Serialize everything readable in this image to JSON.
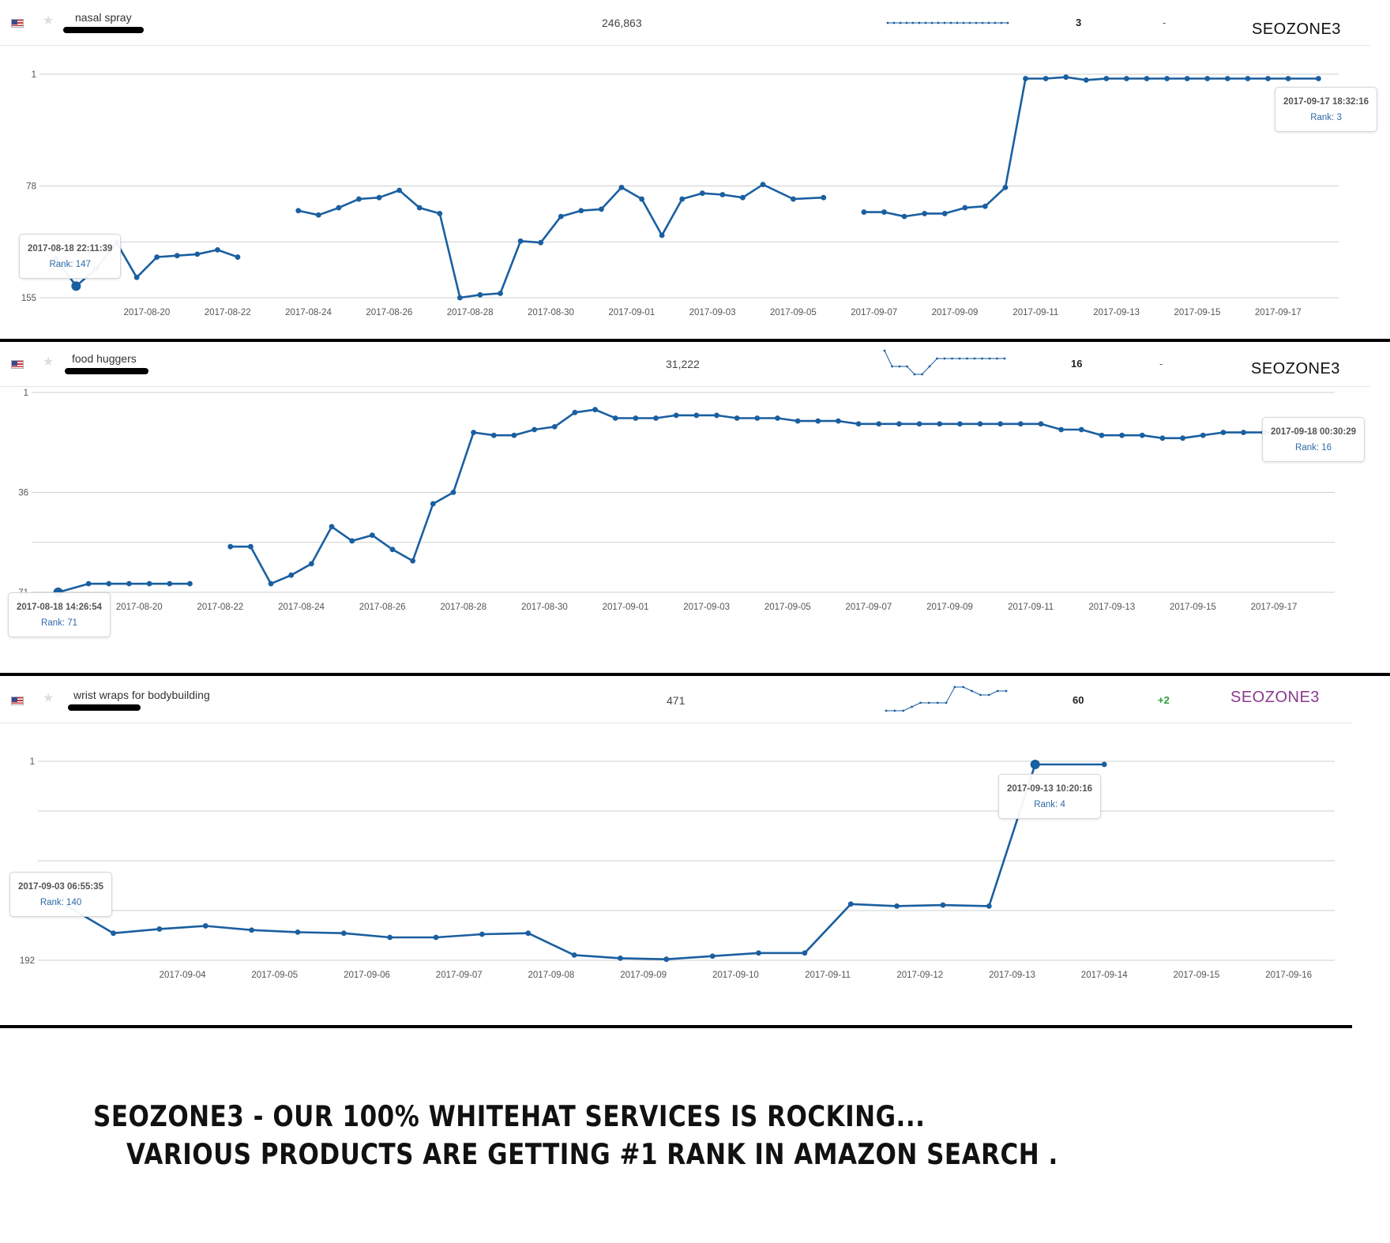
{
  "panels": [
    {
      "keyword": "nasal spray",
      "search_volume": "246,863",
      "current_rank": "3",
      "change": "-",
      "brand": "SEOZONE3",
      "flag_icon": "us-flag-icon",
      "star_icon": "star-icon",
      "tooltip_start": {
        "timestamp": "2017-08-18 22:11:39",
        "rank": "Rank: 147"
      },
      "tooltip_end": {
        "timestamp": "2017-09-17 18:32:16",
        "rank": "Rank: 3"
      },
      "sparkline": [
        3,
        3,
        3,
        3,
        3,
        3,
        3,
        3,
        3,
        3,
        3,
        3,
        3,
        3,
        3,
        3,
        3,
        3,
        3,
        3
      ],
      "chart_data": {
        "type": "line",
        "y_axis": "rank",
        "ylim": [
          1,
          155
        ],
        "ytick_labels": [
          "1",
          "78",
          "155"
        ],
        "y_tick_values": [
          1,
          78,
          155
        ],
        "extra_gridlines": [
          116.5
        ],
        "x_start": "2017-08-18",
        "x_end": "2017-09-19",
        "xtick_labels": [
          "2017-08-20",
          "2017-08-22",
          "2017-08-24",
          "2017-08-26",
          "2017-08-28",
          "2017-08-30",
          "2017-09-01",
          "2017-09-03",
          "2017-09-05",
          "2017-09-07",
          "2017-09-09",
          "2017-09-11",
          "2017-09-13",
          "2017-09-15",
          "2017-09-17"
        ],
        "x": [
          "2017-08-18",
          "2017-08-18",
          "2017-08-19",
          "2017-08-19",
          "2017-08-20",
          "2017-08-20",
          "2017-08-21",
          "2017-08-21",
          "2017-08-22",
          "2017-08-22",
          "2017-08-23",
          "2017-08-24",
          "2017-08-24",
          "2017-08-25",
          "2017-08-25",
          "2017-08-26",
          "2017-08-26",
          "2017-08-27",
          "2017-08-27",
          "2017-08-28",
          "2017-08-28",
          "2017-08-29",
          "2017-08-29",
          "2017-08-30",
          "2017-08-30",
          "2017-08-31",
          "2017-08-31",
          "2017-09-01",
          "2017-09-01",
          "2017-09-02",
          "2017-09-02",
          "2017-09-03",
          "2017-09-03",
          "2017-09-04",
          "2017-09-04",
          "2017-09-05",
          "2017-09-06",
          "2017-09-06",
          "2017-09-07",
          "2017-09-07",
          "2017-09-08",
          "2017-09-08",
          "2017-09-09",
          "2017-09-09",
          "2017-09-10",
          "2017-09-10",
          "2017-09-11",
          "2017-09-11",
          "2017-09-12",
          "2017-09-12",
          "2017-09-13",
          "2017-09-13",
          "2017-09-14",
          "2017-09-14",
          "2017-09-15",
          "2017-09-15",
          "2017-09-16",
          "2017-09-16",
          "2017-09-17",
          "2017-09-17",
          "2017-09-18"
        ],
        "series": [
          {
            "values": [
              128,
              147,
              135,
              117,
              141,
              127,
              126,
              125,
              122,
              127,
              null,
              95,
              98,
              93,
              87,
              86,
              81,
              93,
              97,
              155,
              153,
              152,
              116,
              117,
              99,
              95,
              94,
              79,
              87,
              112,
              87,
              83,
              84,
              86,
              77,
              87,
              86,
              null,
              96,
              96,
              99,
              97,
              97,
              93,
              92,
              79,
              4,
              4,
              3,
              5,
              4,
              4,
              4,
              4,
              4,
              4,
              4,
              4,
              4,
              4,
              4
            ]
          }
        ]
      }
    },
    {
      "keyword": "food huggers",
      "search_volume": "31,222",
      "current_rank": "16",
      "change": "-",
      "brand": "SEOZONE3",
      "flag_icon": "us-flag-icon",
      "star_icon": "star-icon",
      "tooltip_start": {
        "timestamp": "2017-08-18 14:26:54",
        "rank": "Rank: 71"
      },
      "tooltip_end": {
        "timestamp": "2017-09-18 00:30:29",
        "rank": "Rank: 16"
      },
      "sparkline": [
        1,
        5,
        5,
        5,
        7,
        7,
        5,
        3,
        3,
        3,
        3,
        3,
        3,
        3,
        3,
        3,
        3
      ],
      "chart_data": {
        "type": "line",
        "y_axis": "rank",
        "ylim": [
          1,
          71
        ],
        "ytick_labels": [
          "1",
          "36",
          "71"
        ],
        "y_tick_values": [
          1,
          36,
          71
        ],
        "extra_gridlines": [
          53.5
        ],
        "x_start": "2017-08-18",
        "x_end": "2017-09-19",
        "xtick_labels": [
          "2017-08-20",
          "2017-08-22",
          "2017-08-24",
          "2017-08-26",
          "2017-08-28",
          "2017-08-30",
          "2017-09-01",
          "2017-09-03",
          "2017-09-05",
          "2017-09-07",
          "2017-09-09",
          "2017-09-11",
          "2017-09-13",
          "2017-09-15",
          "2017-09-17"
        ],
        "x": [
          "2017-08-18",
          "2017-08-19",
          "2017-08-19",
          "2017-08-20",
          "2017-08-20",
          "2017-08-21",
          "2017-08-21",
          "2017-08-22",
          "2017-08-22",
          "2017-08-23",
          "2017-08-23",
          "2017-08-24",
          "2017-08-24",
          "2017-08-25",
          "2017-08-25",
          "2017-08-26",
          "2017-08-26",
          "2017-08-27",
          "2017-08-27",
          "2017-08-28",
          "2017-08-28",
          "2017-08-29",
          "2017-08-29",
          "2017-08-30",
          "2017-08-30",
          "2017-08-31",
          "2017-08-31",
          "2017-09-01",
          "2017-09-01",
          "2017-09-02",
          "2017-09-02",
          "2017-09-03",
          "2017-09-03",
          "2017-09-04",
          "2017-09-04",
          "2017-09-05",
          "2017-09-05",
          "2017-09-06",
          "2017-09-06",
          "2017-09-07",
          "2017-09-07",
          "2017-09-08",
          "2017-09-08",
          "2017-09-09",
          "2017-09-09",
          "2017-09-10",
          "2017-09-10",
          "2017-09-11",
          "2017-09-11",
          "2017-09-12",
          "2017-09-12",
          "2017-09-13",
          "2017-09-13",
          "2017-09-14",
          "2017-09-14",
          "2017-09-15",
          "2017-09-15",
          "2017-09-16",
          "2017-09-16",
          "2017-09-17",
          "2017-09-17",
          "2017-09-18"
        ],
        "series": [
          {
            "values": [
              71,
              68,
              68,
              68,
              68,
              68,
              68,
              null,
              55,
              55,
              68,
              65,
              61,
              48,
              53,
              51,
              56,
              60,
              40,
              36,
              15,
              16,
              16,
              14,
              13,
              8,
              7,
              10,
              10,
              10,
              9,
              9,
              9,
              10,
              10,
              10,
              11,
              11,
              11,
              12,
              12,
              12,
              12,
              12,
              12,
              12,
              12,
              12,
              12,
              14,
              14,
              16,
              16,
              16,
              17,
              17,
              16,
              15,
              15,
              15,
              15,
              15
            ]
          }
        ]
      }
    },
    {
      "keyword": "wrist wraps for bodybuilding",
      "search_volume": "471",
      "current_rank": "60",
      "change": "+2",
      "brand": "SEOZONE3",
      "flag_icon": "us-flag-icon",
      "star_icon": "star-icon",
      "tooltip_start": {
        "timestamp": "2017-09-03 06:55:35",
        "rank": "Rank: 140"
      },
      "tooltip_end": {
        "timestamp": "2017-09-13 10:20:16",
        "rank": "Rank: 4"
      },
      "sparkline": [
        8,
        8,
        8,
        7,
        6,
        6,
        6,
        6,
        2,
        2,
        3,
        4,
        4,
        3,
        3
      ],
      "chart_data": {
        "type": "line",
        "y_axis": "rank",
        "ylim": [
          1,
          192
        ],
        "ytick_labels": [
          "1",
          "192"
        ],
        "y_tick_values": [
          1,
          192
        ],
        "extra_gridlines": [
          48.75,
          96.5,
          144.25
        ],
        "x_start": "2017-09-03",
        "x_end": "2017-09-17",
        "xtick_labels": [
          "2017-09-04",
          "2017-09-05",
          "2017-09-06",
          "2017-09-07",
          "2017-09-08",
          "2017-09-09",
          "2017-09-10",
          "2017-09-11",
          "2017-09-12",
          "2017-09-13",
          "2017-09-14",
          "2017-09-15",
          "2017-09-16"
        ],
        "x": [
          "2017-09-03",
          "2017-09-03",
          "2017-09-04",
          "2017-09-04",
          "2017-09-05",
          "2017-09-05",
          "2017-09-06",
          "2017-09-06",
          "2017-09-07",
          "2017-09-07",
          "2017-09-08",
          "2017-09-08",
          "2017-09-09",
          "2017-09-09",
          "2017-09-10",
          "2017-09-10",
          "2017-09-11",
          "2017-09-11",
          "2017-09-12",
          "2017-09-12",
          "2017-09-13",
          "2017-09-13",
          "2017-09-14"
        ],
        "series": [
          {
            "values": [
              140,
              166,
              162,
              159,
              163,
              165,
              166,
              170,
              170,
              167,
              166,
              187,
              190,
              191,
              188,
              185,
              185,
              138,
              140,
              139,
              140,
              4,
              4
            ]
          }
        ]
      }
    }
  ],
  "footer": {
    "line1": "SEOZONE3 - our 100% whitehat services is rocking...",
    "line2": "Various products are getting #1 Rank in Amazon search ."
  },
  "colors": {
    "line": "#1a5fa0",
    "grid": "#cfcfcf",
    "axis_text": "#555555"
  }
}
